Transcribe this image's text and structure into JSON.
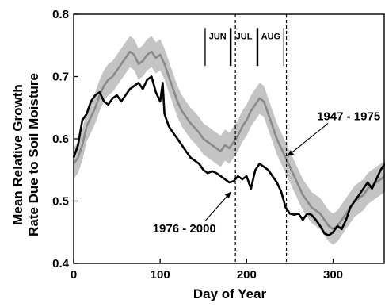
{
  "chart_data": {
    "type": "line",
    "xlabel": "Day of Year",
    "ylabel_lines": [
      "Mean Relative Growth",
      "Rate Due to Soil Moisture"
    ],
    "xlim": [
      0,
      360
    ],
    "ylim": [
      0.4,
      0.8
    ],
    "xticks": [
      0,
      100,
      200,
      300
    ],
    "yticks": [
      0.4,
      0.5,
      0.6,
      0.7,
      0.8
    ],
    "ytick_labels": [
      "0.4",
      "0.5",
      "0.6",
      "0.7",
      "0.8"
    ],
    "grid": false,
    "colors": {
      "band": "#c4c4c4",
      "series_early": "#8a8a8a",
      "series_late": "#000000"
    },
    "month_markers": [
      {
        "label": "JUN",
        "start": 152,
        "end": 181
      },
      {
        "label": "JUL",
        "start": 182,
        "end": 212
      },
      {
        "label": "AUG",
        "start": 213,
        "end": 243
      }
    ],
    "vertical_dashed_lines": [
      187,
      246
    ],
    "annotations": [
      {
        "text": "1947 - 1975",
        "series": "1947 - 1975",
        "label_x": 318,
        "label_y": 0.63,
        "arrow_to_x": 247,
        "arrow_to_y": 0.572
      },
      {
        "text": "1976 - 2000",
        "series": "1976 - 2000",
        "label_x": 128,
        "label_y": 0.45,
        "arrow_to_x": 182,
        "arrow_to_y": 0.515
      }
    ],
    "series": [
      {
        "name": "1947 - 1975",
        "band_halfwidth": 0.025,
        "x": [
          0,
          5,
          10,
          15,
          20,
          25,
          30,
          35,
          40,
          45,
          50,
          55,
          60,
          65,
          70,
          75,
          80,
          85,
          90,
          95,
          100,
          105,
          110,
          115,
          120,
          125,
          130,
          135,
          140,
          145,
          150,
          155,
          160,
          165,
          170,
          175,
          180,
          185,
          190,
          195,
          200,
          205,
          210,
          215,
          220,
          225,
          230,
          235,
          240,
          245,
          250,
          255,
          260,
          265,
          270,
          275,
          280,
          285,
          290,
          295,
          300,
          305,
          310,
          315,
          320,
          325,
          330,
          335,
          340,
          345,
          350,
          355,
          360
        ],
        "values": [
          0.56,
          0.57,
          0.59,
          0.62,
          0.635,
          0.65,
          0.67,
          0.685,
          0.695,
          0.7,
          0.71,
          0.72,
          0.73,
          0.74,
          0.735,
          0.72,
          0.725,
          0.735,
          0.74,
          0.73,
          0.735,
          0.72,
          0.7,
          0.68,
          0.66,
          0.645,
          0.635,
          0.625,
          0.618,
          0.61,
          0.6,
          0.595,
          0.59,
          0.585,
          0.58,
          0.59,
          0.585,
          0.595,
          0.605,
          0.62,
          0.63,
          0.645,
          0.655,
          0.665,
          0.66,
          0.64,
          0.62,
          0.6,
          0.585,
          0.57,
          0.555,
          0.54,
          0.525,
          0.51,
          0.5,
          0.49,
          0.485,
          0.48,
          0.47,
          0.46,
          0.455,
          0.46,
          0.47,
          0.48,
          0.49,
          0.5,
          0.505,
          0.51,
          0.52,
          0.525,
          0.53,
          0.535,
          0.54
        ]
      },
      {
        "name": "1976 - 2000",
        "band_halfwidth": 0.0,
        "x": [
          0,
          5,
          10,
          15,
          20,
          25,
          30,
          35,
          40,
          45,
          50,
          55,
          60,
          65,
          70,
          75,
          80,
          85,
          90,
          95,
          100,
          103,
          105,
          110,
          115,
          120,
          125,
          130,
          135,
          140,
          145,
          150,
          155,
          160,
          165,
          170,
          175,
          180,
          185,
          190,
          195,
          200,
          205,
          210,
          215,
          220,
          225,
          230,
          235,
          240,
          245,
          250,
          255,
          260,
          265,
          270,
          275,
          280,
          285,
          290,
          295,
          300,
          305,
          310,
          315,
          320,
          325,
          330,
          335,
          340,
          345,
          350,
          355,
          360
        ],
        "values": [
          0.57,
          0.59,
          0.63,
          0.64,
          0.66,
          0.67,
          0.675,
          0.66,
          0.655,
          0.665,
          0.67,
          0.66,
          0.67,
          0.68,
          0.685,
          0.69,
          0.68,
          0.695,
          0.7,
          0.675,
          0.66,
          0.69,
          0.64,
          0.62,
          0.61,
          0.6,
          0.59,
          0.58,
          0.57,
          0.565,
          0.56,
          0.55,
          0.545,
          0.548,
          0.545,
          0.54,
          0.535,
          0.53,
          0.532,
          0.54,
          0.535,
          0.54,
          0.52,
          0.55,
          0.56,
          0.555,
          0.55,
          0.54,
          0.53,
          0.515,
          0.49,
          0.48,
          0.478,
          0.48,
          0.47,
          0.48,
          0.478,
          0.47,
          0.46,
          0.448,
          0.445,
          0.45,
          0.46,
          0.455,
          0.47,
          0.49,
          0.5,
          0.51,
          0.52,
          0.53,
          0.52,
          0.535,
          0.55,
          0.56
        ]
      }
    ]
  }
}
